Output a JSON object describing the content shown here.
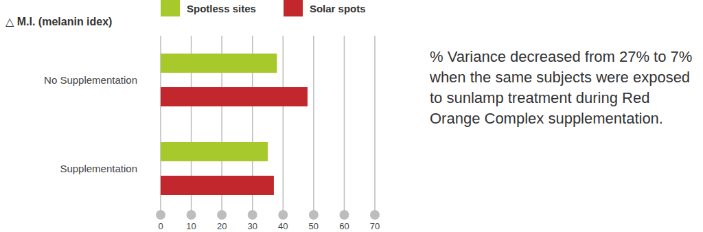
{
  "chart_data": {
    "type": "bar",
    "orientation": "horizontal",
    "title": "△ M.I. (melanin idex)",
    "categories": [
      "No Supplementation",
      "Supplementation"
    ],
    "series": [
      {
        "name": "Spotless sites",
        "color": "#a8c92b",
        "values": [
          38,
          35
        ]
      },
      {
        "name": "Solar spots",
        "color": "#c1272d",
        "values": [
          48,
          37
        ]
      }
    ],
    "xlim": [
      0,
      70
    ],
    "xticks": [
      0,
      10,
      20,
      30,
      40,
      50,
      60,
      70
    ],
    "grid": true,
    "legend": "top",
    "annotations": [
      "% Variance decreased from 27% to 7% when the same subjects were exposed to sunlamp treatment during Red Orange Complex supplementation."
    ]
  }
}
